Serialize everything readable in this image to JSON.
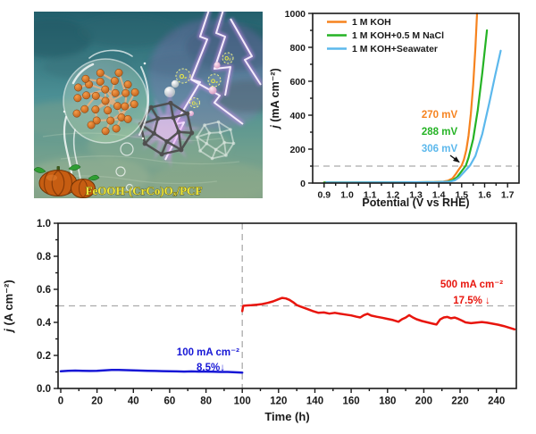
{
  "abstract": {
    "label": "FeOOH-(CrCo)Oₓ/PCF",
    "o2": "O₂"
  },
  "chart_data": [
    {
      "type": "line",
      "xlabel": "Potential (V vs RHE)",
      "ylabel": "j (mA cm⁻²)",
      "ylabel_parts": [
        "j",
        " (mA cm⁻²)"
      ],
      "xlim": [
        0.85,
        1.75
      ],
      "ylim": [
        0,
        1000
      ],
      "xticks": [
        0.9,
        1.0,
        1.1,
        1.2,
        1.3,
        1.4,
        1.5,
        1.6,
        1.7
      ],
      "xtick_labels": [
        "0.9",
        "1.0",
        "1.1",
        "1.2",
        "1.3",
        "1.4",
        "1.5",
        "1.6",
        "1.7"
      ],
      "yticks": [
        0,
        200,
        400,
        600,
        800,
        1000
      ],
      "ytick_labels": [
        "0",
        "200",
        "400",
        "600",
        "800",
        "1000"
      ],
      "grid": false,
      "legend_position": "top-left",
      "ref_y": 100,
      "series": [
        {
          "name": "1 M KOH",
          "color": "#f6831f",
          "overpotential": "270 mV",
          "x": [
            0.9,
            1.0,
            1.1,
            1.2,
            1.3,
            1.38,
            1.42,
            1.44,
            1.46,
            1.475,
            1.49,
            1.5,
            1.51,
            1.52,
            1.53,
            1.54,
            1.55,
            1.56,
            1.567
          ],
          "y": [
            3,
            3,
            4,
            4,
            5,
            6,
            9,
            14,
            28,
            55,
            85,
            103,
            140,
            195,
            280,
            410,
            580,
            800,
            1000
          ]
        },
        {
          "name": "1 M KOH+0.5 M NaCl",
          "color": "#25b325",
          "overpotential": "288 mV",
          "x": [
            0.9,
            1.0,
            1.1,
            1.2,
            1.3,
            1.4,
            1.44,
            1.46,
            1.48,
            1.5,
            1.518,
            1.53,
            1.55,
            1.57,
            1.59,
            1.61
          ],
          "y": [
            3,
            3,
            4,
            4,
            5,
            6,
            9,
            16,
            35,
            70,
            103,
            150,
            260,
            430,
            650,
            900
          ]
        },
        {
          "name": "1 M KOH+Seawater",
          "color": "#5cb8ec",
          "overpotential": "306 mV",
          "x": [
            0.91,
            0.93,
            1.0,
            1.1,
            1.2,
            1.3,
            1.4,
            1.45,
            1.47,
            1.49,
            1.51,
            1.536,
            1.56,
            1.59,
            1.62,
            1.645,
            1.67
          ],
          "y": [
            5,
            3,
            3,
            4,
            4,
            5,
            6,
            9,
            16,
            35,
            65,
            103,
            160,
            290,
            470,
            630,
            780
          ]
        }
      ]
    },
    {
      "type": "line",
      "xlabel": "Time (h)",
      "ylabel": "j (A cm⁻²)",
      "ylabel_parts": [
        "j",
        " (A cm⁻²)"
      ],
      "xlim": [
        0,
        250
      ],
      "ylim": [
        0,
        1.0
      ],
      "xticks": [
        0,
        20,
        40,
        60,
        80,
        100,
        120,
        140,
        160,
        180,
        200,
        220,
        240
      ],
      "xtick_labels": [
        "0",
        "20",
        "40",
        "60",
        "80",
        "100",
        "120",
        "140",
        "160",
        "180",
        "200",
        "220",
        "240"
      ],
      "yticks": [
        0,
        0.2,
        0.4,
        0.6,
        0.8,
        1.0
      ],
      "ytick_labels": [
        "0.0",
        "0.2",
        "0.4",
        "0.6",
        "0.8",
        "1.0"
      ],
      "grid": false,
      "ref_y": 0.5,
      "ref_x": 100,
      "series": [
        {
          "name": "100 mA cm⁻²",
          "note": "8.5%↓",
          "color": "#1717d6",
          "x": [
            0,
            4,
            8,
            12,
            16,
            20,
            24,
            28,
            32,
            36,
            40,
            44,
            48,
            52,
            56,
            60,
            64,
            68,
            72,
            76,
            80,
            84,
            88,
            92,
            96,
            100
          ],
          "y": [
            0.104,
            0.107,
            0.108,
            0.107,
            0.106,
            0.107,
            0.11,
            0.112,
            0.112,
            0.111,
            0.109,
            0.108,
            0.107,
            0.106,
            0.105,
            0.104,
            0.103,
            0.102,
            0.103,
            0.102,
            0.102,
            0.101,
            0.1,
            0.1,
            0.098,
            0.096
          ]
        },
        {
          "name": "500 mA cm⁻²",
          "note": "17.5% ↓",
          "color": "#e8150d",
          "x": [
            100,
            100.5,
            102,
            105,
            108,
            111,
            114,
            117,
            120,
            122,
            124,
            126,
            128,
            130,
            132,
            134,
            136,
            139,
            142,
            145,
            148,
            151,
            154,
            157,
            160,
            163,
            165,
            167,
            169,
            171,
            174,
            177,
            180,
            183,
            186,
            188,
            190,
            192,
            194,
            196,
            199,
            202,
            205,
            207,
            209,
            211,
            213,
            215,
            217,
            219,
            221,
            223,
            226,
            229,
            232,
            235,
            238,
            241,
            244,
            247,
            250
          ],
          "y": [
            0.468,
            0.5,
            0.502,
            0.504,
            0.507,
            0.511,
            0.518,
            0.527,
            0.54,
            0.548,
            0.545,
            0.536,
            0.522,
            0.505,
            0.496,
            0.488,
            0.48,
            0.468,
            0.458,
            0.46,
            0.453,
            0.458,
            0.452,
            0.447,
            0.442,
            0.434,
            0.43,
            0.444,
            0.452,
            0.441,
            0.434,
            0.428,
            0.421,
            0.414,
            0.404,
            0.419,
            0.429,
            0.444,
            0.43,
            0.419,
            0.408,
            0.4,
            0.392,
            0.387,
            0.418,
            0.43,
            0.433,
            0.425,
            0.429,
            0.421,
            0.411,
            0.4,
            0.395,
            0.399,
            0.402,
            0.398,
            0.392,
            0.386,
            0.378,
            0.368,
            0.358
          ]
        }
      ]
    }
  ]
}
